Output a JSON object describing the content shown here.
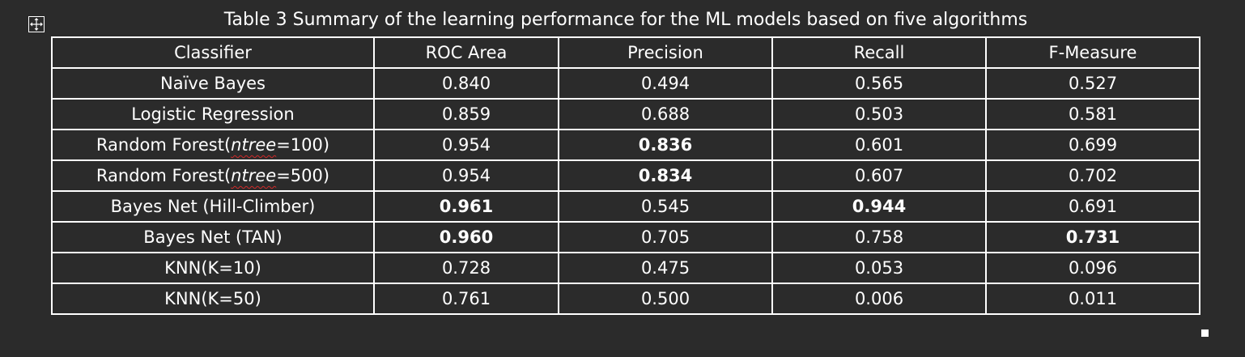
{
  "caption": "Table 3 Summary of the learning performance for the ML models based on five algorithms",
  "icons": {
    "move_handle": "move-arrows-icon",
    "resize_handle": "resize-square-icon"
  },
  "colors": {
    "background": "#2b2b2b",
    "text": "#ffffff",
    "border": "#ffffff",
    "spellcheck_underline": "#d12a2a"
  },
  "table": {
    "headers": [
      "Classifier",
      "ROC Area",
      "Precision",
      "Recall",
      "F-Measure"
    ],
    "rows": [
      {
        "classifier": {
          "text": "Naïve Bayes"
        },
        "values": [
          {
            "v": "0.840",
            "bold": false
          },
          {
            "v": "0.494",
            "bold": false
          },
          {
            "v": "0.565",
            "bold": false
          },
          {
            "v": "0.527",
            "bold": false
          }
        ]
      },
      {
        "classifier": {
          "text": "Logistic Regression"
        },
        "values": [
          {
            "v": "0.859",
            "bold": false
          },
          {
            "v": "0.688",
            "bold": false
          },
          {
            "v": "0.503",
            "bold": false
          },
          {
            "v": "0.581",
            "bold": false
          }
        ]
      },
      {
        "classifier": {
          "pre": "Random Forest(",
          "param": "ntree",
          "post": "=100)"
        },
        "values": [
          {
            "v": "0.954",
            "bold": false
          },
          {
            "v": "0.836",
            "bold": true
          },
          {
            "v": "0.601",
            "bold": false
          },
          {
            "v": "0.699",
            "bold": false
          }
        ]
      },
      {
        "classifier": {
          "pre": "Random Forest(",
          "param": "ntree",
          "post": "=500)"
        },
        "values": [
          {
            "v": "0.954",
            "bold": false
          },
          {
            "v": "0.834",
            "bold": true
          },
          {
            "v": "0.607",
            "bold": false
          },
          {
            "v": "0.702",
            "bold": false
          }
        ]
      },
      {
        "classifier": {
          "text": "Bayes Net (Hill-Climber)"
        },
        "values": [
          {
            "v": "0.961",
            "bold": true
          },
          {
            "v": "0.545",
            "bold": false
          },
          {
            "v": "0.944",
            "bold": true
          },
          {
            "v": "0.691",
            "bold": false
          }
        ]
      },
      {
        "classifier": {
          "text": "Bayes Net (TAN)"
        },
        "values": [
          {
            "v": "0.960",
            "bold": true
          },
          {
            "v": "0.705",
            "bold": false
          },
          {
            "v": "0.758",
            "bold": false
          },
          {
            "v": "0.731",
            "bold": true
          }
        ]
      },
      {
        "classifier": {
          "text": "KNN(K=10)"
        },
        "values": [
          {
            "v": "0.728",
            "bold": false
          },
          {
            "v": "0.475",
            "bold": false
          },
          {
            "v": "0.053",
            "bold": false
          },
          {
            "v": "0.096",
            "bold": false
          }
        ]
      },
      {
        "classifier": {
          "text": "KNN(K=50)"
        },
        "values": [
          {
            "v": "0.761",
            "bold": false
          },
          {
            "v": "0.500",
            "bold": false
          },
          {
            "v": "0.006",
            "bold": false
          },
          {
            "v": "0.011",
            "bold": false
          }
        ]
      }
    ]
  }
}
